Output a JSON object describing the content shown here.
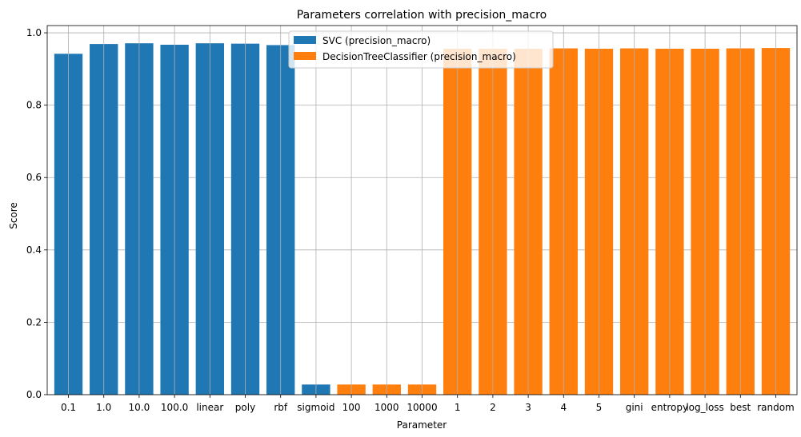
{
  "chart_data": {
    "type": "bar",
    "title": "Parameters correlation with precision_macro",
    "xlabel": "Parameter",
    "ylabel": "Score",
    "ylim": [
      0,
      1.02
    ],
    "yticks": [
      "0.0",
      "0.2",
      "0.4",
      "0.6",
      "0.8",
      "1.0"
    ],
    "grid": true,
    "legend_position": "top-center",
    "categories": [
      "0.1",
      "1.0",
      "10.0",
      "100.0",
      "linear",
      "poly",
      "rbf",
      "sigmoid",
      "100",
      "1000",
      "10000",
      "1",
      "2",
      "3",
      "4",
      "5",
      "gini",
      "entropy",
      "log_loss",
      "best",
      "random"
    ],
    "series": [
      {
        "name": "SVC (precision_macro)",
        "color": "#1f77b4",
        "values": [
          0.942,
          0.969,
          0.971,
          0.967,
          0.971,
          0.97,
          0.966,
          0.028,
          null,
          null,
          null,
          null,
          null,
          null,
          null,
          null,
          null,
          null,
          null,
          null,
          null
        ]
      },
      {
        "name": "DecisionTreeClassifier (precision_macro)",
        "color": "#ff7f0e",
        "values": [
          null,
          null,
          null,
          null,
          null,
          null,
          null,
          null,
          0.028,
          0.028,
          0.028,
          0.956,
          0.956,
          0.956,
          0.957,
          0.956,
          0.957,
          0.956,
          0.956,
          0.957,
          0.958
        ]
      }
    ]
  }
}
